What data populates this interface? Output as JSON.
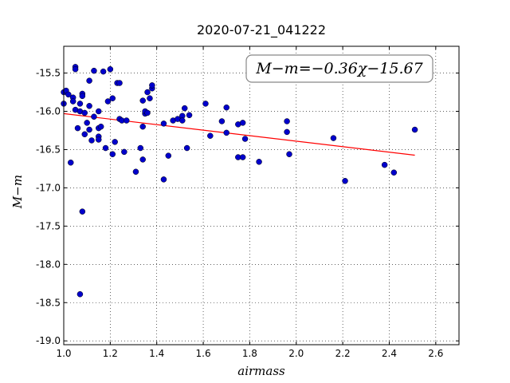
{
  "chart_data": {
    "type": "scatter",
    "title": "2020-07-21_041222",
    "xlabel": "airmass",
    "ylabel": "M−m",
    "xlim": [
      1.0,
      2.7
    ],
    "ylim": [
      -19.05,
      -15.15
    ],
    "x_ticks": [
      "1.0",
      "1.2",
      "1.4",
      "1.6",
      "1.8",
      "2.0",
      "2.2",
      "2.4",
      "2.6"
    ],
    "y_ticks": [
      "-15.5",
      "-16.0",
      "-16.5",
      "-17.0",
      "-17.5",
      "-18.0",
      "-18.5",
      "-19.0"
    ],
    "grid": true,
    "annotation": "M−m=−0.36χ−15.67",
    "fit": {
      "slope": -0.36,
      "intercept": -15.67,
      "x_range": [
        1.0,
        2.51
      ],
      "color": "#ff0000"
    },
    "marker_color": "#0000cc",
    "points": [
      [
        1.0,
        -15.75
      ],
      [
        1.0,
        -15.9
      ],
      [
        1.01,
        -15.73
      ],
      [
        1.02,
        -15.78
      ],
      [
        1.04,
        -15.82
      ],
      [
        1.04,
        -15.87
      ],
      [
        1.05,
        -15.42
      ],
      [
        1.05,
        -15.45
      ],
      [
        1.05,
        -15.98
      ],
      [
        1.06,
        -16.22
      ],
      [
        1.07,
        -15.9
      ],
      [
        1.07,
        -16.0
      ],
      [
        1.08,
        -15.77
      ],
      [
        1.08,
        -15.8
      ],
      [
        1.09,
        -16.02
      ],
      [
        1.09,
        -16.3
      ],
      [
        1.1,
        -16.15
      ],
      [
        1.11,
        -15.6
      ],
      [
        1.11,
        -15.93
      ],
      [
        1.11,
        -16.24
      ],
      [
        1.12,
        -16.38
      ],
      [
        1.13,
        -15.47
      ],
      [
        1.13,
        -16.07
      ],
      [
        1.15,
        -16.0
      ],
      [
        1.15,
        -16.22
      ],
      [
        1.15,
        -16.33
      ],
      [
        1.15,
        -16.37
      ],
      [
        1.16,
        -16.2
      ],
      [
        1.17,
        -15.48
      ],
      [
        1.18,
        -16.48
      ],
      [
        1.19,
        -15.87
      ],
      [
        1.2,
        -15.45
      ],
      [
        1.21,
        -15.83
      ],
      [
        1.21,
        -16.56
      ],
      [
        1.22,
        -16.4
      ],
      [
        1.23,
        -15.63
      ],
      [
        1.24,
        -15.63
      ],
      [
        1.24,
        -16.1
      ],
      [
        1.25,
        -16.12
      ],
      [
        1.26,
        -16.53
      ],
      [
        1.27,
        -16.12
      ],
      [
        1.03,
        -16.67
      ],
      [
        1.08,
        -17.31
      ],
      [
        1.07,
        -18.39
      ],
      [
        1.31,
        -16.79
      ],
      [
        1.33,
        -16.48
      ],
      [
        1.34,
        -16.63
      ],
      [
        1.34,
        -15.86
      ],
      [
        1.34,
        -16.2
      ],
      [
        1.35,
        -16.03
      ],
      [
        1.35,
        -16.0
      ],
      [
        1.36,
        -16.02
      ],
      [
        1.36,
        -15.75
      ],
      [
        1.37,
        -15.83
      ],
      [
        1.38,
        -15.7
      ],
      [
        1.38,
        -15.66
      ],
      [
        1.43,
        -16.16
      ],
      [
        1.43,
        -16.89
      ],
      [
        1.45,
        -16.58
      ],
      [
        1.47,
        -16.12
      ],
      [
        1.49,
        -16.1
      ],
      [
        1.51,
        -16.06
      ],
      [
        1.51,
        -16.12
      ],
      [
        1.52,
        -15.96
      ],
      [
        1.53,
        -16.48
      ],
      [
        1.54,
        -16.05
      ],
      [
        1.61,
        -15.9
      ],
      [
        1.63,
        -16.32
      ],
      [
        1.68,
        -16.13
      ],
      [
        1.7,
        -15.95
      ],
      [
        1.7,
        -16.28
      ],
      [
        1.75,
        -16.17
      ],
      [
        1.75,
        -16.6
      ],
      [
        1.77,
        -16.6
      ],
      [
        1.77,
        -16.15
      ],
      [
        1.78,
        -16.36
      ],
      [
        1.84,
        -16.66
      ],
      [
        1.96,
        -16.13
      ],
      [
        1.96,
        -16.27
      ],
      [
        1.97,
        -16.56
      ],
      [
        2.16,
        -16.35
      ],
      [
        2.21,
        -16.91
      ],
      [
        2.38,
        -16.7
      ],
      [
        2.42,
        -16.8
      ],
      [
        2.51,
        -16.24
      ]
    ]
  }
}
